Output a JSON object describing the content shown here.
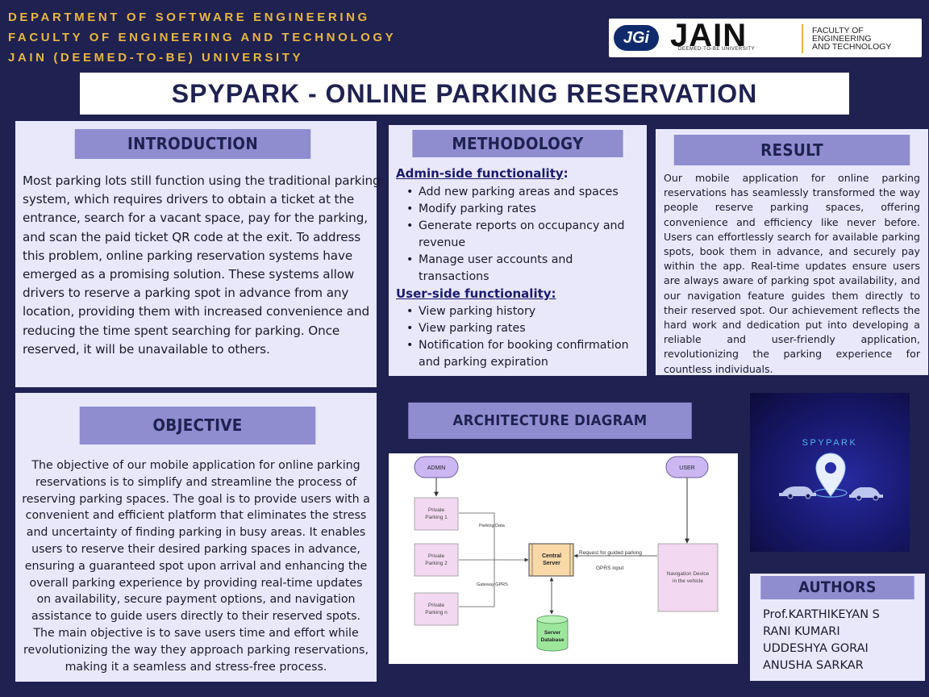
{
  "header": {
    "department_lines": [
      "DEPARTMENT OF SOFTWARE ENGINEERING",
      "FACULTY OF ENGINEERING AND TECHNOLOGY",
      "JAIN (DEEMED-TO-BE) UNIVERSITY"
    ],
    "logo": {
      "jgi": "JGi",
      "jain": "JAIN",
      "jain_sub": "DEEMED-TO-BE UNIVERSITY",
      "faculty_lines": [
        "FACULTY OF",
        "ENGINEERING",
        "AND TECHNOLOGY"
      ]
    }
  },
  "title": "SPYPARK - ONLINE PARKING RESERVATION",
  "introduction": {
    "heading": "INTRODUCTION",
    "text": "Most parking lots still function using the traditional parking system, which requires drivers to obtain a ticket at the entrance, search for a vacant space, pay for the parking, and scan the paid ticket QR code at the exit. To address this problem, online parking reservation systems have emerged as a promising solution. These systems allow drivers to reserve a parking spot in advance from any location, providing them with increased convenience and reducing the time spent searching for parking. Once reserved, it will be unavailable to others."
  },
  "methodology": {
    "heading": "METHODOLOGY",
    "admin_title": "Admin-side functionality",
    "admin_colon": ":",
    "admin_items": [
      "Add new parking areas and spaces",
      "Modify parking rates",
      "Generate reports on occupancy and revenue",
      "Manage user accounts and transactions"
    ],
    "user_title": "User-side functionality:",
    "user_items": [
      "View parking history",
      "View parking rates",
      "Notification for booking confirmation and parking expiration"
    ]
  },
  "result": {
    "heading": "RESULT",
    "text": "Our mobile application for online parking reservations has seamlessly transformed the way people reserve parking spaces, offering convenience and efficiency like never before. Users can effortlessly search for available parking spots, book them in advance, and securely pay within the app. Real-time updates ensure users are always aware of parking spot availability, and our navigation feature guides them directly to their reserved spot. Our achievement reflects the hard work and dedication put into developing a reliable and user-friendly application, revolutionizing the parking experience for countless individuals."
  },
  "objective": {
    "heading": "OBJECTIVE",
    "text": "The objective of our mobile application for online parking reservations is to simplify and streamline the process of reserving parking spaces. The goal is to provide users with a convenient and efficient platform that eliminates the stress and uncertainty of finding parking in busy areas. It enables users to reserve their desired parking spaces in advance, ensuring a guaranteed spot upon arrival and enhancing the overall parking experience by providing real-time updates on availability, secure payment options, and navigation assistance to guide users directly to their reserved spots. The main objective is to save users time and effort while revolutionizing the way they approach parking reservations, making it a seamless and stress-free process."
  },
  "architecture": {
    "heading": "ARCHITECTURE DIAGRAM",
    "nodes": {
      "admin": "ADMIN",
      "user": "USER",
      "parking1": [
        "Private",
        "Parking 1"
      ],
      "parking2": [
        "Private",
        "Parking 2"
      ],
      "parkingn": [
        "Private",
        "Parking n"
      ],
      "server": [
        "Central",
        "Server"
      ],
      "database": [
        "Server",
        "Database"
      ],
      "navigation": [
        "Navigation Device",
        "in the vehicle"
      ]
    },
    "edge_labels": {
      "parking_data": "Parking Data",
      "gateway_gprs": "Gateway GPRS",
      "request": "Request for guided parking",
      "gprs_input": "GPRS input"
    }
  },
  "spypark_image": {
    "label": "SPYPARK",
    "icon": "location-pin-icon"
  },
  "authors": {
    "heading": "AUTHORS",
    "names": [
      "Prof.KARTHIKEYAN S",
      "RANI KUMARI",
      "UDDESHYA GORAI",
      "ANUSHA SARKAR"
    ]
  },
  "colors": {
    "background": "#1f2150",
    "accent_gold": "#e8b640",
    "panel": "#e9e8fb",
    "heading_bar": "#8f8dd0"
  }
}
